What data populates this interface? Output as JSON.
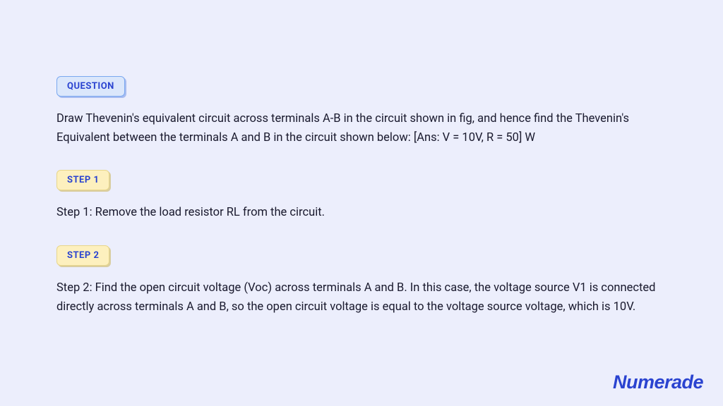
{
  "badges": {
    "question": "QUESTION",
    "step1": "STEP 1",
    "step2": "STEP 2"
  },
  "paragraphs": {
    "question_text": "Draw Thevenin's equivalent circuit across terminals A-B in the circuit shown in fig, and hence find the Thevenin's Equivalent between the terminals A and B in the circuit shown below: [Ans: V = 10V, R = 50] W",
    "step1_text": "Step 1: Remove the load resistor RL from the circuit.",
    "step2_text": "Step 2: Find the open circuit voltage (Voc) across terminals A and B. In this case, the voltage source V1 is connected directly across terminals A and B, so the open circuit voltage is equal to the voltage source voltage, which is 10V."
  },
  "logo_text": "Numerade",
  "colors": {
    "page_bg": "#eceefc",
    "question_badge_bg": "#dbe7fb",
    "question_badge_border": "#7aa8f0",
    "step_badge_bg": "#fdf0be",
    "step_badge_border": "#e8d68a",
    "badge_text": "#2a43d0",
    "body_text": "#1a1a2e",
    "logo_color": "#2a43d0"
  },
  "typography": {
    "badge_fontsize": 13,
    "paragraph_fontsize": 16.5,
    "logo_fontsize": 27,
    "paragraph_lineheight": 1.65
  }
}
